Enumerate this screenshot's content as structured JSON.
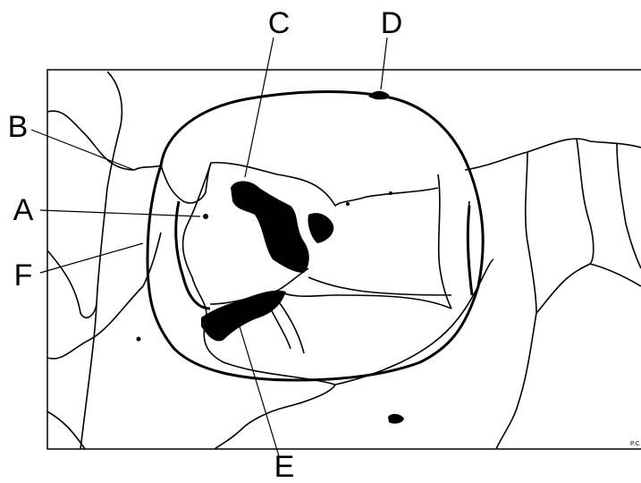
{
  "labels": {
    "A": "A",
    "B": "B",
    "C": "C",
    "D": "D",
    "E": "E",
    "F": "F"
  },
  "signature": "P.C"
}
